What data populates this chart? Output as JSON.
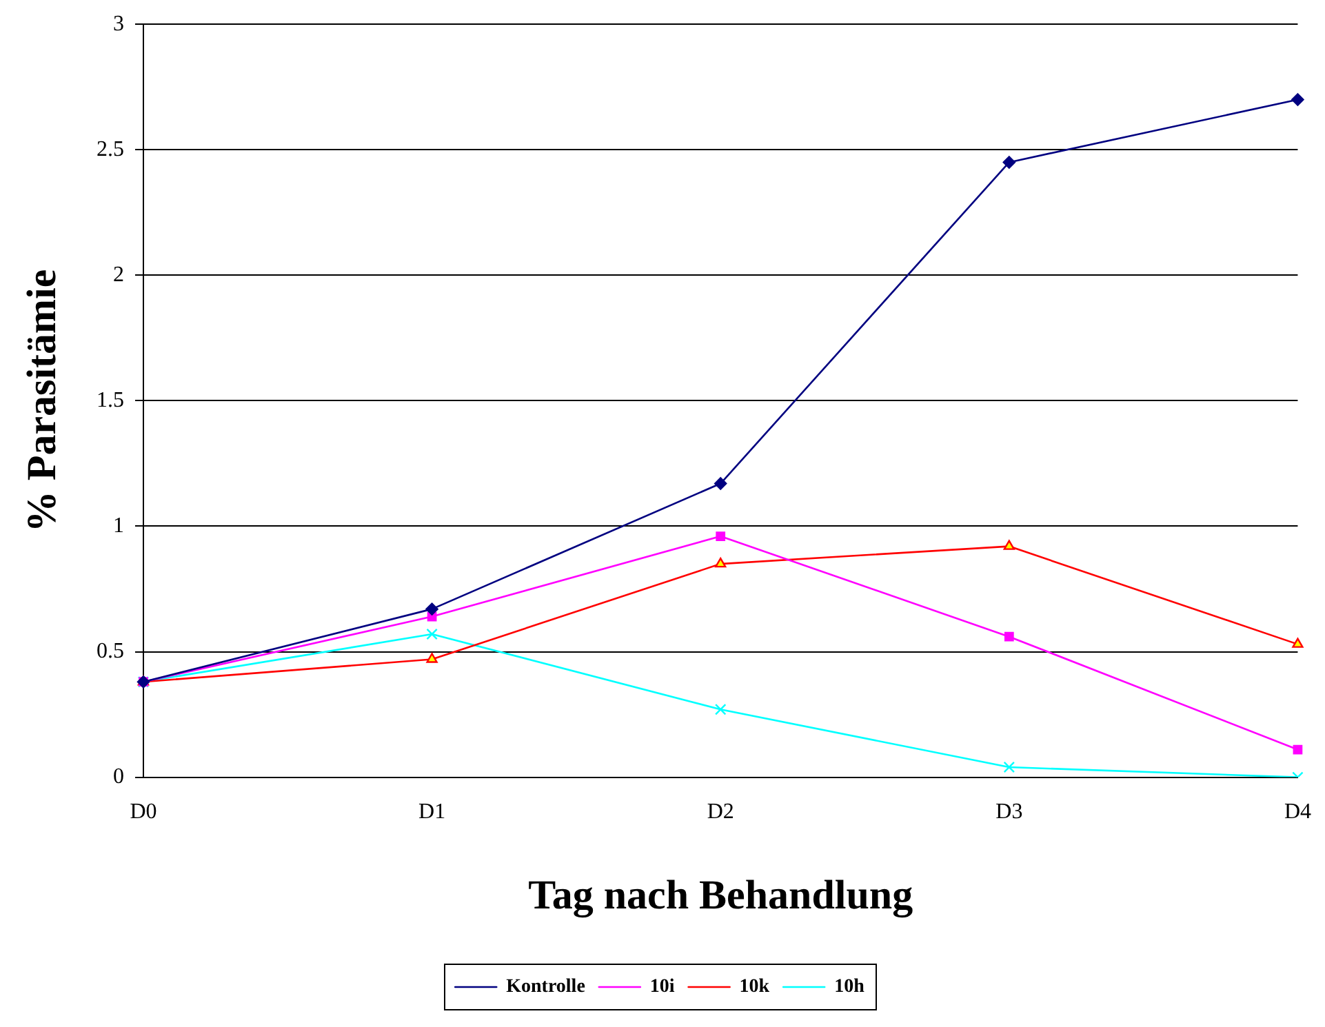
{
  "chart_data": {
    "type": "line",
    "xlabel": "Tag nach Behandlung",
    "ylabel": "% Parasitämie",
    "categories": [
      "D0",
      "D1",
      "D2",
      "D3",
      "D4"
    ],
    "series": [
      {
        "name": "Kontrolle",
        "color": "#000080",
        "marker": "diamond",
        "values": [
          0.38,
          0.67,
          1.17,
          2.45,
          2.7
        ]
      },
      {
        "name": "10i",
        "color": "#ff00ff",
        "marker": "square",
        "values": [
          0.38,
          0.64,
          0.96,
          0.56,
          0.11
        ]
      },
      {
        "name": "10k",
        "color": "#ff0000",
        "marker": "triangle",
        "values": [
          0.38,
          0.47,
          0.85,
          0.92,
          0.53
        ]
      },
      {
        "name": "10h",
        "color": "#00ffff",
        "marker": "cross",
        "values": [
          0.38,
          0.57,
          0.27,
          0.04,
          0
        ]
      }
    ],
    "ylim": [
      0,
      3
    ],
    "yticks": [
      0,
      0.5,
      1,
      1.5,
      2,
      2.5,
      3
    ],
    "grid": "y",
    "legend": "bottom",
    "line_style": "solid"
  }
}
